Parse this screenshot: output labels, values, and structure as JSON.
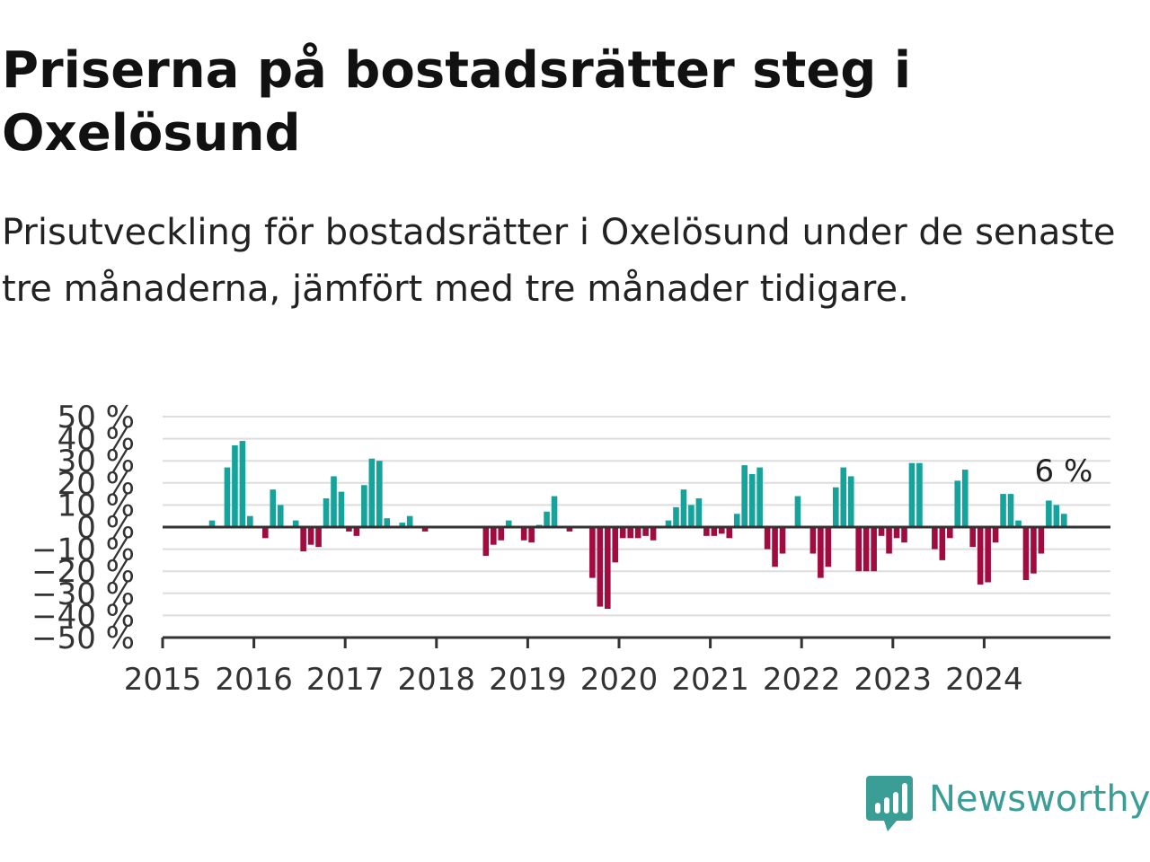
{
  "title": "Priserna på bostadsrätter steg i Oxelösund",
  "subtitle": "Prisutveckling för bostadsrätter i Oxelösund under de senaste tre månaderna, jämfört med tre månader tidigare.",
  "brand": {
    "name": "Newsworthy",
    "color": "#3a9d96",
    "icon": "newsworthy-chart-bubble-icon"
  },
  "colors": {
    "positive": "#16a39b",
    "negative": "#a10b3f",
    "grid": "#dddddd",
    "axis": "#333333"
  },
  "chart_data": {
    "type": "bar",
    "xlabel": "",
    "ylabel": "",
    "ylim": [
      -50,
      50
    ],
    "yticks": [
      {
        "value": 50,
        "label": "50 %"
      },
      {
        "value": 40,
        "label": "40 %"
      },
      {
        "value": 30,
        "label": "30 %"
      },
      {
        "value": 20,
        "label": "20 %"
      },
      {
        "value": 10,
        "label": "10 %"
      },
      {
        "value": 0,
        "label": "0 %"
      },
      {
        "value": -10,
        "label": "−10 %"
      },
      {
        "value": -20,
        "label": "−20 %"
      },
      {
        "value": -30,
        "label": "−30 %"
      },
      {
        "value": -40,
        "label": "−40 %"
      },
      {
        "value": -50,
        "label": "−50 %"
      }
    ],
    "xticks": [
      "2015",
      "2016",
      "2017",
      "2018",
      "2019",
      "2020",
      "2021",
      "2022",
      "2023",
      "2024"
    ],
    "grid": true,
    "last_label": "6 %",
    "series": [
      {
        "start": "2015-01",
        "values": [
          0,
          0,
          0,
          0,
          0,
          0,
          3,
          0,
          27,
          37,
          39,
          5,
          0,
          -5,
          17,
          10,
          0,
          3,
          -11,
          -8,
          -9,
          13,
          23,
          16,
          -2,
          -4,
          19,
          31,
          30,
          4,
          0,
          2,
          5,
          0,
          -2,
          0,
          0,
          0,
          0,
          0,
          0,
          0,
          -13,
          -8,
          -6,
          3,
          0,
          -6,
          -7,
          1,
          7,
          14,
          0,
          -2,
          0,
          0,
          -23,
          -36,
          -37,
          -16,
          -5,
          -5,
          -5,
          -4,
          -6,
          0,
          3,
          9,
          17,
          10,
          13,
          -4,
          -4,
          -3,
          -5,
          6,
          28,
          24,
          27,
          -10,
          -18,
          -12,
          0,
          14,
          0,
          -12,
          -23,
          -18,
          18,
          27,
          23,
          -20,
          -20,
          -20,
          -4,
          -12,
          -5,
          -7,
          29,
          29,
          0,
          -10,
          -15,
          -5,
          21,
          26,
          -9,
          -26,
          -25,
          -7,
          15,
          15,
          3,
          -24,
          -21,
          -12,
          12,
          10,
          6
        ]
      }
    ]
  }
}
